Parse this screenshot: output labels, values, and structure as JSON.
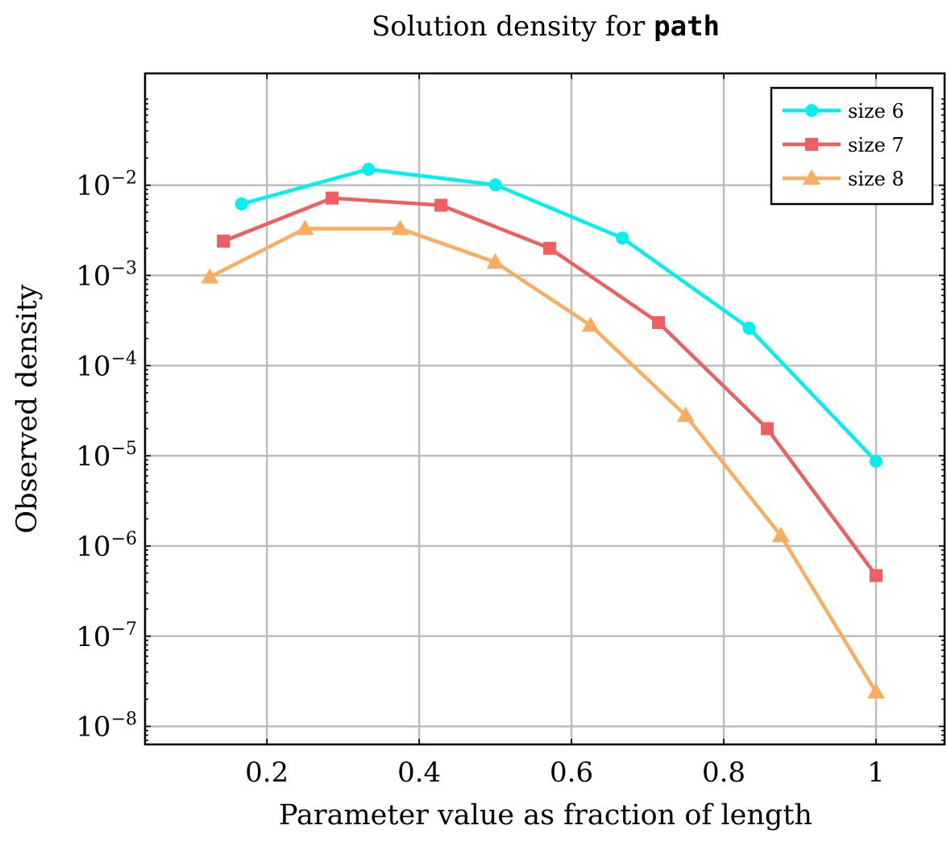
{
  "chart_data": {
    "type": "line",
    "title": "Solution density for",
    "title_code": "path",
    "xlabel": "Parameter value as fraction of length",
    "ylabel": "Observed density",
    "xlim": [
      0.04,
      1.09
    ],
    "ylim_log10": [
      -8.2,
      -0.76
    ],
    "y_scale": "log",
    "grid": true,
    "legend_position": "top-right",
    "x_ticks": [
      {
        "value": 0.2,
        "label": "0.2"
      },
      {
        "value": 0.4,
        "label": "0.4"
      },
      {
        "value": 0.6,
        "label": "0.6"
      },
      {
        "value": 0.8,
        "label": "0.8"
      },
      {
        "value": 1.0,
        "label": "1"
      }
    ],
    "y_ticks": [
      {
        "exp": -2,
        "base": "10",
        "sup": "−2"
      },
      {
        "exp": -3,
        "base": "10",
        "sup": "−3"
      },
      {
        "exp": -4,
        "base": "10",
        "sup": "−4"
      },
      {
        "exp": -5,
        "base": "10",
        "sup": "−5"
      },
      {
        "exp": -6,
        "base": "10",
        "sup": "−6"
      },
      {
        "exp": -7,
        "base": "10",
        "sup": "−7"
      },
      {
        "exp": -8,
        "base": "10",
        "sup": "−8"
      }
    ],
    "series": [
      {
        "name": "size 6",
        "color": "#00f0f0",
        "marker": "circle",
        "x": [
          0.1667,
          0.3333,
          0.5,
          0.6667,
          0.8333,
          1.0
        ],
        "y": [
          0.0062,
          0.015,
          0.0101,
          0.0026,
          0.00026,
          8.7e-06
        ]
      },
      {
        "name": "size 7",
        "color": "#f05f5f",
        "marker": "square",
        "x": [
          0.1429,
          0.2857,
          0.4286,
          0.5714,
          0.7143,
          0.8571,
          1.0
        ],
        "y": [
          0.0024,
          0.0072,
          0.006,
          0.002,
          0.0003,
          2e-05,
          4.7e-07
        ]
      },
      {
        "name": "size 8",
        "color": "#fbac5f",
        "marker": "triangle",
        "x": [
          0.125,
          0.25,
          0.375,
          0.5,
          0.625,
          0.75,
          0.875,
          1.0
        ],
        "y": [
          0.00096,
          0.0033,
          0.0033,
          0.0014,
          0.00028,
          2.8e-05,
          1.3e-06,
          2.4e-08
        ]
      }
    ]
  }
}
